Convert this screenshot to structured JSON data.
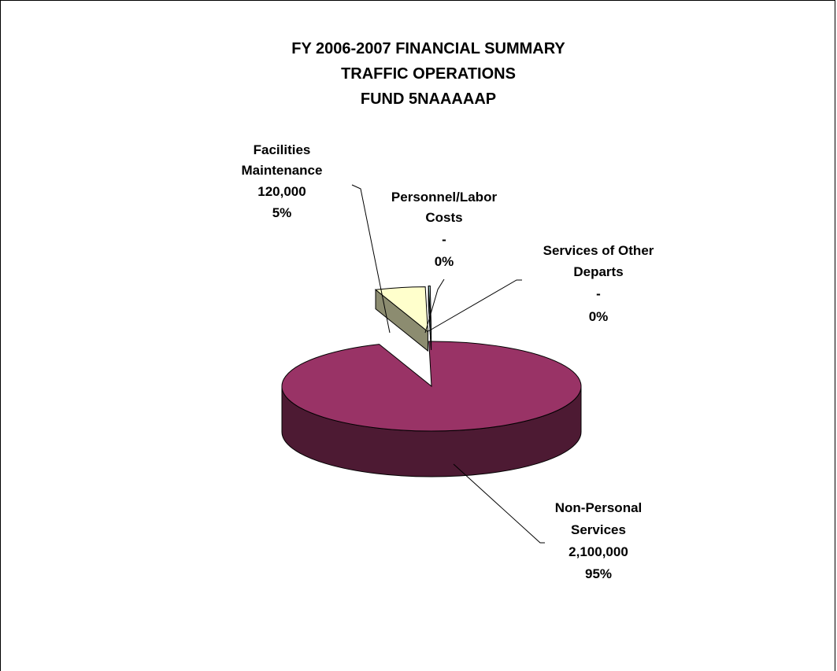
{
  "chart_data": {
    "type": "pie",
    "title": [
      "FY 2006-2007 FINANCIAL SUMMARY",
      "TRAFFIC OPERATIONS",
      "FUND 5NAAAAAP"
    ],
    "slices": [
      {
        "name": [
          "Non-Personal",
          "Services"
        ],
        "value_label": "2,100,000",
        "value": 2100000,
        "percent_label": "95%",
        "color": "#993366",
        "exploded": false
      },
      {
        "name": [
          "Facilities",
          "Maintenance"
        ],
        "value_label": "120,000",
        "value": 120000,
        "percent_label": "5%",
        "color": "#FFFFCC",
        "exploded": true
      },
      {
        "name": [
          "Personnel/Labor",
          "Costs"
        ],
        "value_label": "-",
        "value": 0,
        "percent_label": "0%",
        "color": "#FFFFFF",
        "exploded": true
      },
      {
        "name": [
          "Services of Other",
          "Departs"
        ],
        "value_label": "-",
        "value": 0,
        "percent_label": "0%",
        "color": "#CCFFFF",
        "exploded": true
      }
    ],
    "style": "3d-pie",
    "legend": "none"
  }
}
